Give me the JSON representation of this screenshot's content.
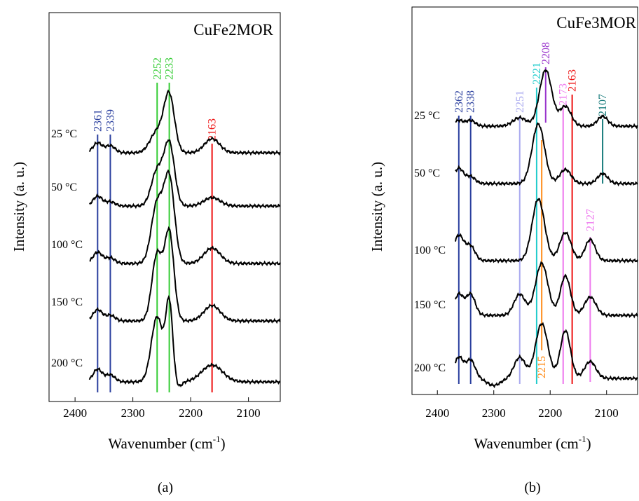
{
  "figure": {
    "label_a": "(a)",
    "label_b": "(b)"
  },
  "chart_data": [
    {
      "type": "line",
      "panel": "(a)",
      "title": "CuFe2MOR",
      "xlabel": "Wavenumber (cm",
      "xlabel_sup": "-1",
      "xlabel_close": ")",
      "ylabel": "Intensity (a. u.)",
      "xlim": [
        2445,
        2045
      ],
      "xticks": [
        2400,
        2300,
        2200,
        2100
      ],
      "series": [
        {
          "name": "25 °C",
          "baseline": 218,
          "shape": "a25"
        },
        {
          "name": "50 °C",
          "baseline": 294,
          "shape": "a50"
        },
        {
          "name": "100 °C",
          "baseline": 376,
          "shape": "a100"
        },
        {
          "name": "150 °C",
          "baseline": 458,
          "shape": "a150"
        },
        {
          "name": "200 °C",
          "baseline": 545,
          "shape": "a200"
        }
      ],
      "peaks": [
        {
          "label": "2361",
          "x": 2361,
          "color": "#2a3f9e"
        },
        {
          "label": "2339",
          "x": 2339,
          "color": "#2a3f9e"
        },
        {
          "label": "2252",
          "x": 2258,
          "color": "#33cc33"
        },
        {
          "label": "2233",
          "x": 2237,
          "color": "#33cc33"
        },
        {
          "label": "2163",
          "x": 2163,
          "color": "#ee1111"
        }
      ]
    },
    {
      "type": "line",
      "panel": "(b)",
      "title": "CuFe3MOR",
      "xlabel": "Wavenumber (cm",
      "xlabel_sup": "-1",
      "xlabel_close": ")",
      "ylabel": "Intensity (a. u.)",
      "xlim": [
        2445,
        2045
      ],
      "xticks": [
        2400,
        2300,
        2200,
        2100
      ],
      "series": [
        {
          "name": "25 °C",
          "baseline": 180,
          "shape": "b25"
        },
        {
          "name": "50 °C",
          "baseline": 262,
          "shape": "b50"
        },
        {
          "name": "100 °C",
          "baseline": 372,
          "shape": "b100"
        },
        {
          "name": "150 °C",
          "baseline": 450,
          "shape": "b150"
        },
        {
          "name": "200 °C",
          "baseline": 540,
          "shape": "b200"
        }
      ],
      "peaks": [
        {
          "label": "2362",
          "x": 2362,
          "color": "#2a3f9e",
          "label_pos": "top"
        },
        {
          "label": "2338",
          "x": 2341,
          "color": "#2a3f9e",
          "label_pos": "top"
        },
        {
          "label": "2251",
          "x": 2254,
          "color": "#a9a9ef",
          "label_pos": "top"
        },
        {
          "label": "2221",
          "x": 2224,
          "color": "#22cccc",
          "label_pos": "top"
        },
        {
          "label": "2208",
          "x": 2208,
          "color": "#9933cc",
          "label_pos": "top"
        },
        {
          "label": "2215",
          "x": 2215,
          "color": "#ff8c1a",
          "label_pos": "bottom"
        },
        {
          "label": "2173",
          "x": 2177,
          "color": "#ee77ee",
          "label_pos": "top"
        },
        {
          "label": "2163",
          "x": 2161,
          "color": "#ee1111",
          "label_pos": "top"
        },
        {
          "label": "2127",
          "x": 2129,
          "color": "#ee77ee",
          "label_pos": "mid"
        },
        {
          "label": "2107",
          "x": 2107,
          "color": "#157a7a",
          "label_pos": "top"
        }
      ]
    }
  ]
}
